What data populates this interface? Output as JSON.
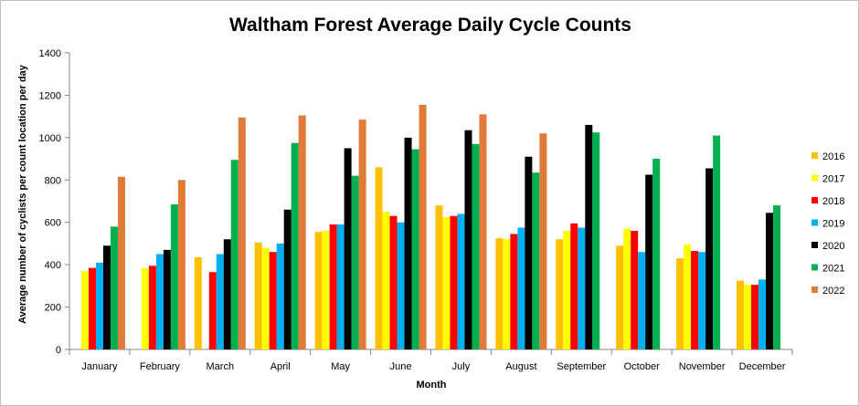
{
  "chart_data": {
    "type": "bar",
    "title": "Waltham Forest Average Daily Cycle Counts",
    "xlabel": "Month",
    "ylabel": "Average number of cyclists per count location per day",
    "ylim": [
      0,
      1400
    ],
    "yticks": [
      0,
      200,
      400,
      600,
      800,
      1000,
      1200,
      1400
    ],
    "grid": "none",
    "legend_position": "right",
    "categories": [
      "January",
      "February",
      "March",
      "April",
      "May",
      "June",
      "July",
      "August",
      "September",
      "October",
      "November",
      "December"
    ],
    "series": [
      {
        "name": "2016",
        "color": "#FFC000",
        "values": [
          null,
          null,
          435,
          505,
          555,
          860,
          680,
          525,
          520,
          490,
          430,
          325
        ]
      },
      {
        "name": "2017",
        "color": "#FFFF00",
        "values": [
          370,
          385,
          null,
          480,
          560,
          650,
          625,
          520,
          560,
          570,
          495,
          305
        ]
      },
      {
        "name": "2018",
        "color": "#FF0000",
        "values": [
          385,
          395,
          365,
          460,
          590,
          630,
          630,
          545,
          595,
          560,
          465,
          305
        ]
      },
      {
        "name": "2019",
        "color": "#00B0F0",
        "values": [
          410,
          450,
          450,
          500,
          590,
          600,
          640,
          575,
          575,
          460,
          460,
          330
        ]
      },
      {
        "name": "2020",
        "color": "#000000",
        "values": [
          490,
          470,
          520,
          660,
          950,
          1000,
          1035,
          910,
          1060,
          825,
          855,
          645
        ]
      },
      {
        "name": "2021",
        "color": "#00B050",
        "values": [
          580,
          685,
          895,
          975,
          820,
          945,
          970,
          835,
          1025,
          900,
          1010,
          680
        ]
      },
      {
        "name": "2022",
        "color": "#E07B39",
        "values": [
          815,
          800,
          1095,
          1105,
          1085,
          1155,
          1110,
          1020,
          null,
          null,
          null,
          null
        ]
      }
    ]
  }
}
